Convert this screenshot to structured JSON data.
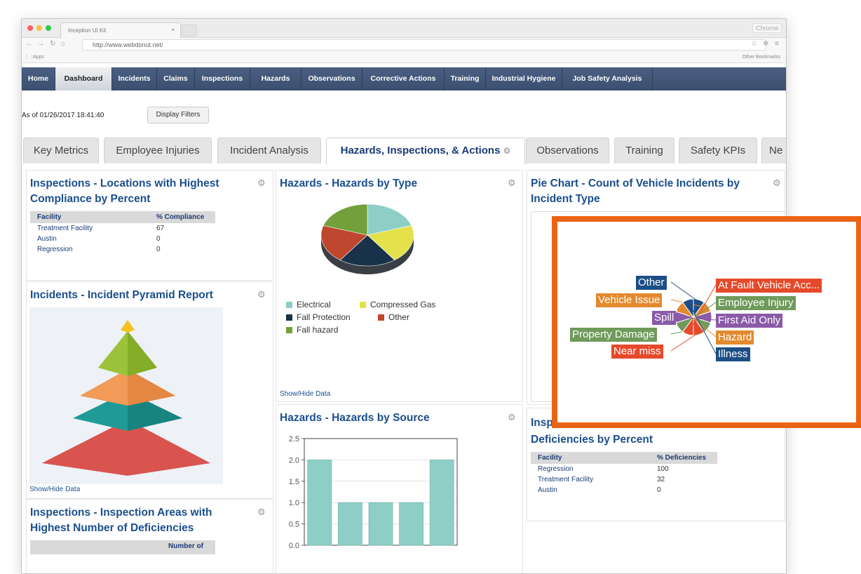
{
  "browser": {
    "tab_title": "Inception UI Kit",
    "tab_close": "×",
    "brand": "Chrome",
    "url": "http://www.webdonut.net/",
    "apps_label": "Apps",
    "other_bookmarks": "Other Bookmarks"
  },
  "nav": {
    "items": [
      "Home",
      "Dashboard",
      "Incidents",
      "Claims",
      "Inspections",
      "Hazards",
      "Observations",
      "Corrective Actions",
      "Training",
      "Industrial Hygiene",
      "Job Safety Analysis"
    ],
    "active": "Dashboard"
  },
  "toolbar": {
    "as_of": "As of 01/26/2017 18:41:40",
    "display_filters": "Display Filters"
  },
  "tabs": {
    "items": [
      "Key Metrics",
      "Employee Injuries",
      "Incident Analysis",
      "Hazards, Inspections, & Actions",
      "Observations",
      "Training",
      "Safety KPIs",
      "Ne"
    ],
    "active": "Hazards, Inspections, & Actions"
  },
  "panels": {
    "compliance": {
      "title": "Inspections - Locations with Highest Compliance by Percent",
      "col_facility": "Facility",
      "col_value": "% Compliance",
      "rows": [
        {
          "facility": "Treatment Facility",
          "value": "67"
        },
        {
          "facility": "Austin",
          "value": "0"
        },
        {
          "facility": "Regression",
          "value": "0"
        }
      ]
    },
    "pyramid": {
      "title": "Incidents - Incident Pyramid Report",
      "show_hide": "Show/Hide Data"
    },
    "areas": {
      "title": "Inspections - Inspection Areas with Highest Number of Deficiencies",
      "col_value": "Number of"
    },
    "hazards_type": {
      "title": "Hazards - Hazards by Type",
      "legend": [
        "Electrical",
        "Compressed Gas",
        "Fall Protection",
        "Other",
        "Fall hazard"
      ],
      "show_hide": "Show/Hide Data"
    },
    "hazards_source": {
      "title": "Hazards - Hazards by Source"
    },
    "vehicle": {
      "title": "Pie Chart - Count of Vehicle Incidents by Incident Type"
    },
    "deficiencies": {
      "title_visible_part": "Insp",
      "title_line2": "Deficiencies by Percent",
      "col_facility": "Facility",
      "col_value": "% Deficiencies",
      "rows": [
        {
          "facility": "Regression",
          "value": "100"
        },
        {
          "facility": "Treatment Facility",
          "value": "32"
        },
        {
          "facility": "Austin",
          "value": "0"
        }
      ]
    }
  },
  "chart_data": [
    {
      "type": "pie",
      "title": "Hazards - Hazards by Type",
      "labels": [
        "Electrical",
        "Compressed Gas",
        "Fall Protection",
        "Other",
        "Fall hazard"
      ],
      "values": [
        1,
        1,
        1,
        1,
        1
      ],
      "colors": [
        "#8dcfc6",
        "#e4e14a",
        "#18324a",
        "#c0472f",
        "#73a03a"
      ]
    },
    {
      "type": "bar",
      "title": "Hazards - Hazards by Source",
      "categories": [
        "",
        "",
        "",
        "",
        ""
      ],
      "values": [
        2,
        1,
        1,
        1,
        2
      ],
      "ylim": [
        0,
        2.5
      ],
      "yticks": [
        "0.0",
        "0.5",
        "1.0",
        "1.5",
        "2.0",
        "2.5"
      ],
      "color": "#8dcfc6",
      "grid": true
    },
    {
      "type": "pie",
      "title": "Pie Chart - Count of Vehicle Incidents by Incident Type",
      "labels": [
        "Other",
        "Vehicle Issue",
        "Spill",
        "Property Damage",
        "Near miss",
        "At Fault Vehicle Acc...",
        "Employee Injury",
        "First Aid Only",
        "Hazard",
        "Illness"
      ],
      "values": [
        1,
        1,
        1,
        1,
        1,
        1,
        1,
        1,
        1,
        1
      ],
      "colors": [
        "#1d4e86",
        "#e38a2f",
        "#8a5aa8",
        "#6f9a5b",
        "#e6492a",
        "#e6492a",
        "#6f9a5b",
        "#8a5aa8",
        "#e38a2f",
        "#1d4e86"
      ]
    }
  ]
}
